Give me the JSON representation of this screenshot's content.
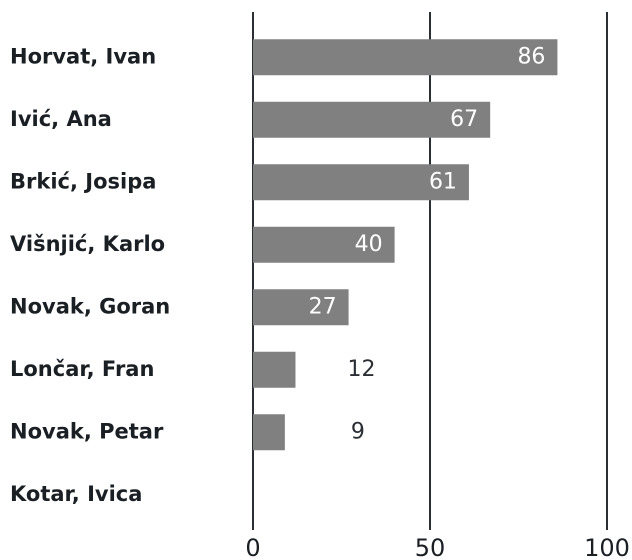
{
  "chart_data": {
    "type": "bar",
    "orientation": "horizontal",
    "categories": [
      "Horvat, Ivan",
      "Ivić,  Ana",
      "Brkić, Josipa",
      "Višnjić, Karlo",
      "Novak, Goran",
      "Lončar, Fran",
      "Novak, Petar",
      "Kotar, Ivica"
    ],
    "values": [
      86,
      67,
      61,
      40,
      27,
      12,
      9,
      null
    ],
    "color": "#808080",
    "xlim": [
      0,
      100
    ],
    "xticks": [
      0,
      50,
      100
    ],
    "grid": true
  }
}
